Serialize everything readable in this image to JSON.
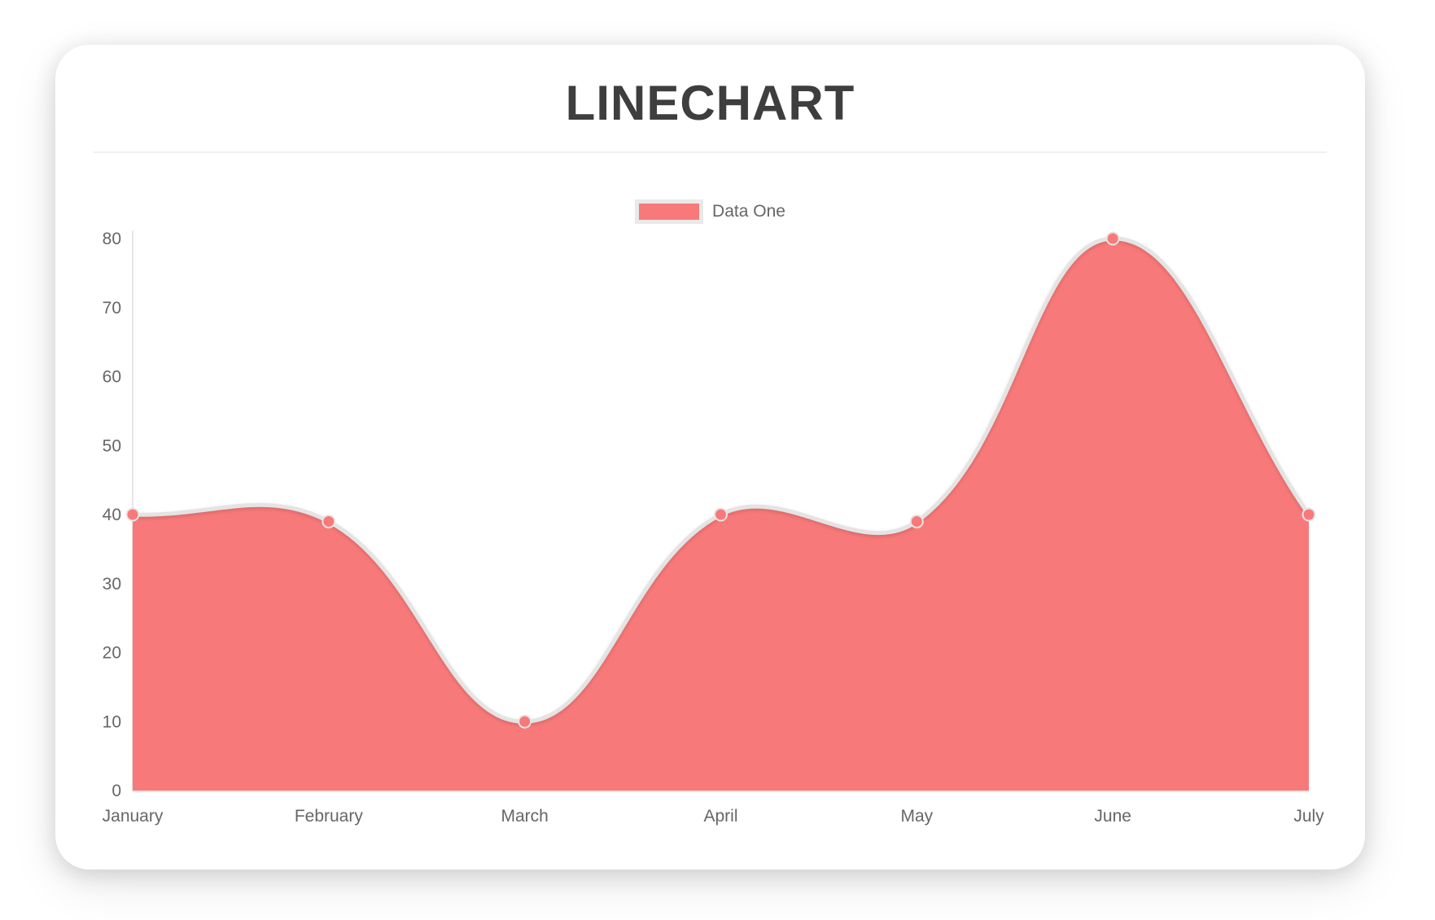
{
  "chart_data": {
    "type": "area",
    "title": "LINECHART",
    "categories": [
      "January",
      "February",
      "March",
      "April",
      "May",
      "June",
      "July"
    ],
    "series": [
      {
        "name": "Data One",
        "values": [
          40,
          39,
          10,
          40,
          39,
          80,
          40
        ]
      }
    ],
    "xlabel": "",
    "ylabel": "",
    "ylim": [
      0,
      80
    ],
    "y_step": 10,
    "grid": false,
    "legend_position": "top",
    "line_tension": 0.4,
    "colors": {
      "fill": "#f87979",
      "line": "#e4e4e4",
      "point_fill": "#f87979",
      "point_border": "#e6e6e6",
      "axis": "#e6e6e6",
      "tick_text": "#666666",
      "title_text": "#3e3e3e",
      "divider": "#f0f0f0",
      "legend_border": "#e9e9e9"
    }
  }
}
